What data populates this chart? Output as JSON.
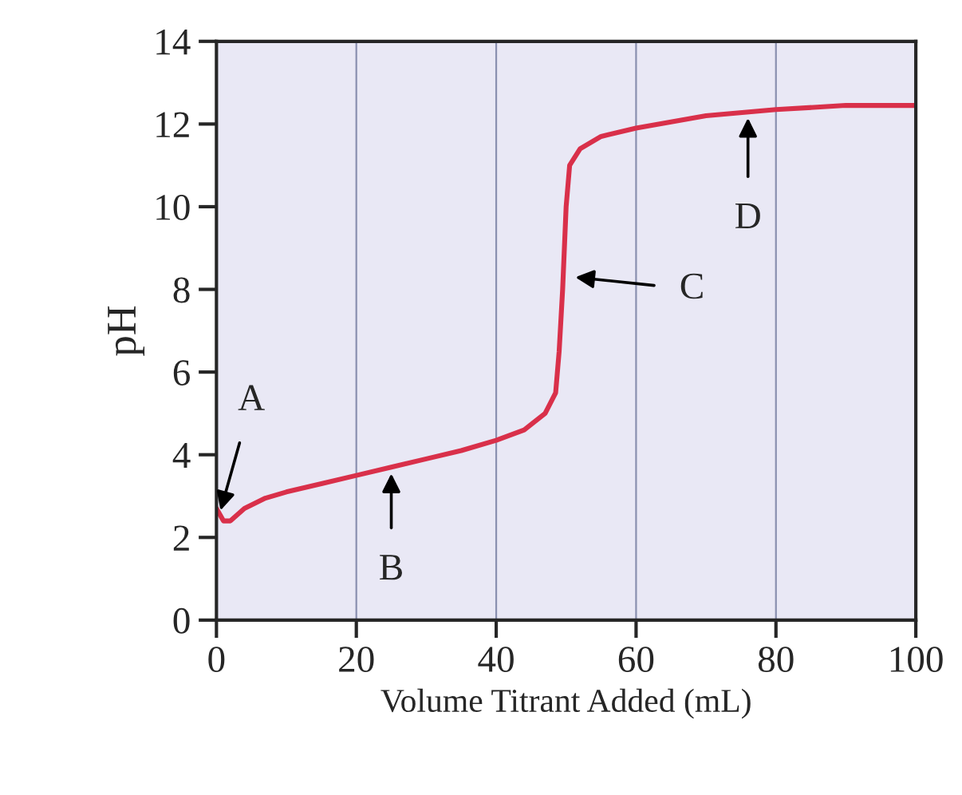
{
  "chart_data": {
    "type": "line",
    "xlabel": "Volume Titrant Added (mL)",
    "ylabel": "pH",
    "x": [
      0,
      1,
      2,
      4,
      7,
      10,
      15,
      20,
      25,
      30,
      35,
      40,
      44,
      47,
      48.5,
      49,
      49.5,
      50,
      50.5,
      52,
      55,
      60,
      65,
      70,
      80,
      90,
      100
    ],
    "series": [
      {
        "color": "#d9304a",
        "values": [
          2.7,
          2.4,
          2.4,
          2.7,
          2.95,
          3.1,
          3.3,
          3.5,
          3.7,
          3.9,
          4.1,
          4.35,
          4.6,
          5.0,
          5.5,
          6.5,
          8.0,
          10.0,
          11.0,
          11.4,
          11.7,
          11.9,
          12.05,
          12.2,
          12.35,
          12.45,
          12.45
        ]
      }
    ],
    "xlim": [
      0,
      100
    ],
    "ylim": [
      0,
      14
    ],
    "xticks": [
      0,
      20,
      40,
      60,
      80,
      100
    ],
    "yticks": [
      0,
      2,
      4,
      6,
      8,
      10,
      12,
      14
    ],
    "grid": "x",
    "marker": "none",
    "line_style": "solid",
    "legend": false,
    "annotations": [
      {
        "text": "A",
        "x": 0.5,
        "y": 2.6
      },
      {
        "text": "B",
        "x": 25,
        "y": 3.6
      },
      {
        "text": "C",
        "x": 51,
        "y": 8.3
      },
      {
        "text": "D",
        "x": 76,
        "y": 12.2
      }
    ]
  }
}
